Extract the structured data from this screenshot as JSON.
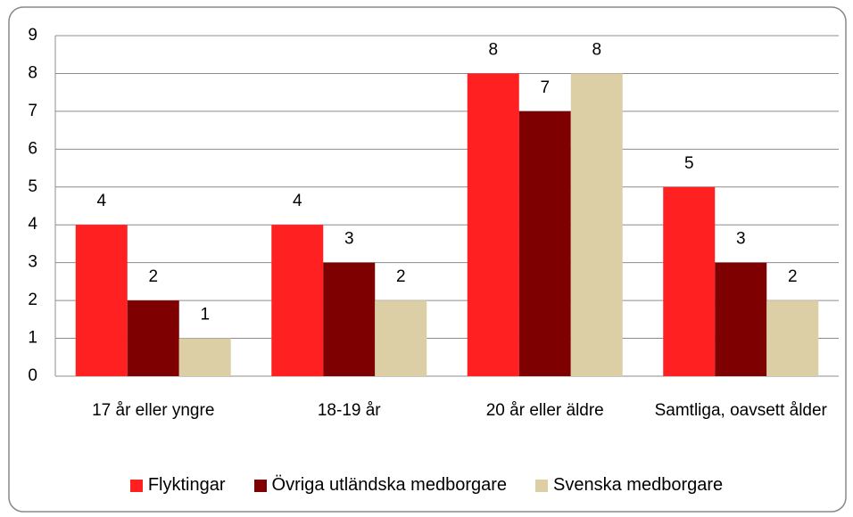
{
  "chart_data": {
    "type": "bar",
    "categories": [
      "17 år eller yngre",
      "18-19 år",
      "20 år eller äldre",
      "Samtliga, oavsett ålder"
    ],
    "series": [
      {
        "name": "Flyktingar",
        "color": "#ff2121",
        "values": [
          4,
          4,
          8,
          5
        ]
      },
      {
        "name": "Övriga utländska medborgare",
        "color": "#7f0000",
        "values": [
          2,
          3,
          7,
          3
        ]
      },
      {
        "name": "Svenska medborgare",
        "color": "#dccfa6",
        "values": [
          1,
          2,
          8,
          2
        ]
      }
    ],
    "ylim": [
      0,
      9
    ],
    "yticks": [
      0,
      1,
      2,
      3,
      4,
      5,
      6,
      7,
      8,
      9
    ],
    "grid": true,
    "legend": "bottom"
  }
}
